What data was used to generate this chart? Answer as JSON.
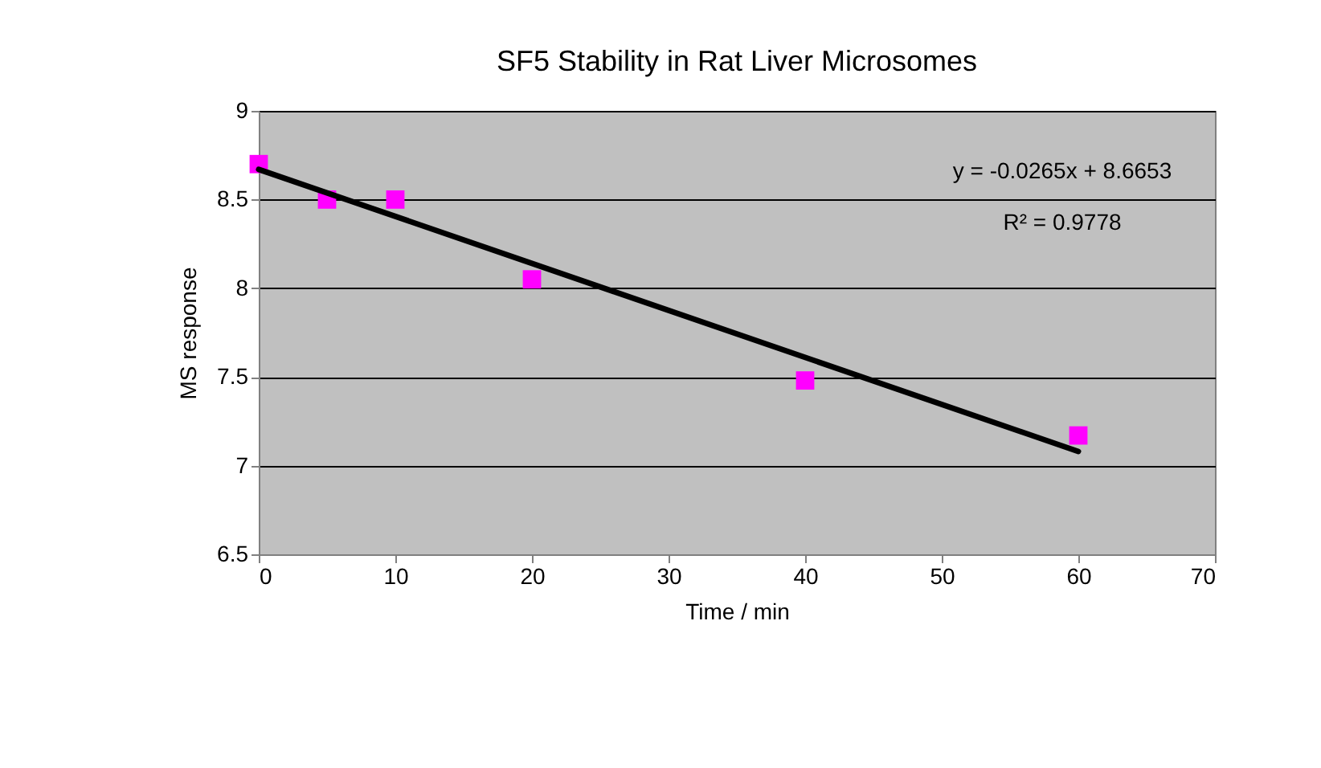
{
  "chart_data": {
    "type": "scatter",
    "title": "SF5 Stability in Rat Liver Microsomes",
    "xlabel": "Time / min",
    "ylabel": "MS response",
    "x": [
      0,
      5,
      10,
      20,
      40,
      60
    ],
    "series": [
      {
        "color": "#ff00ff",
        "values": [
          8.7,
          8.5,
          8.5,
          8.05,
          7.48,
          7.17
        ],
        "marker": "square"
      },
      {
        "type": "line",
        "color": "#000000",
        "x": [
          0,
          60
        ],
        "values": [
          8.67,
          7.08
        ],
        "marker": "none",
        "line_style": "solid"
      }
    ],
    "xlim": [
      0,
      70
    ],
    "xticks": [
      0,
      10,
      20,
      30,
      40,
      50,
      60,
      70
    ],
    "ylim": [
      6.5,
      9
    ],
    "yticks": [
      6.5,
      7,
      7.5,
      8,
      8.5,
      9
    ],
    "grid": "y",
    "annotations": [
      "y = -0.0265x + 8.6653",
      "R² = 0.9778"
    ]
  }
}
